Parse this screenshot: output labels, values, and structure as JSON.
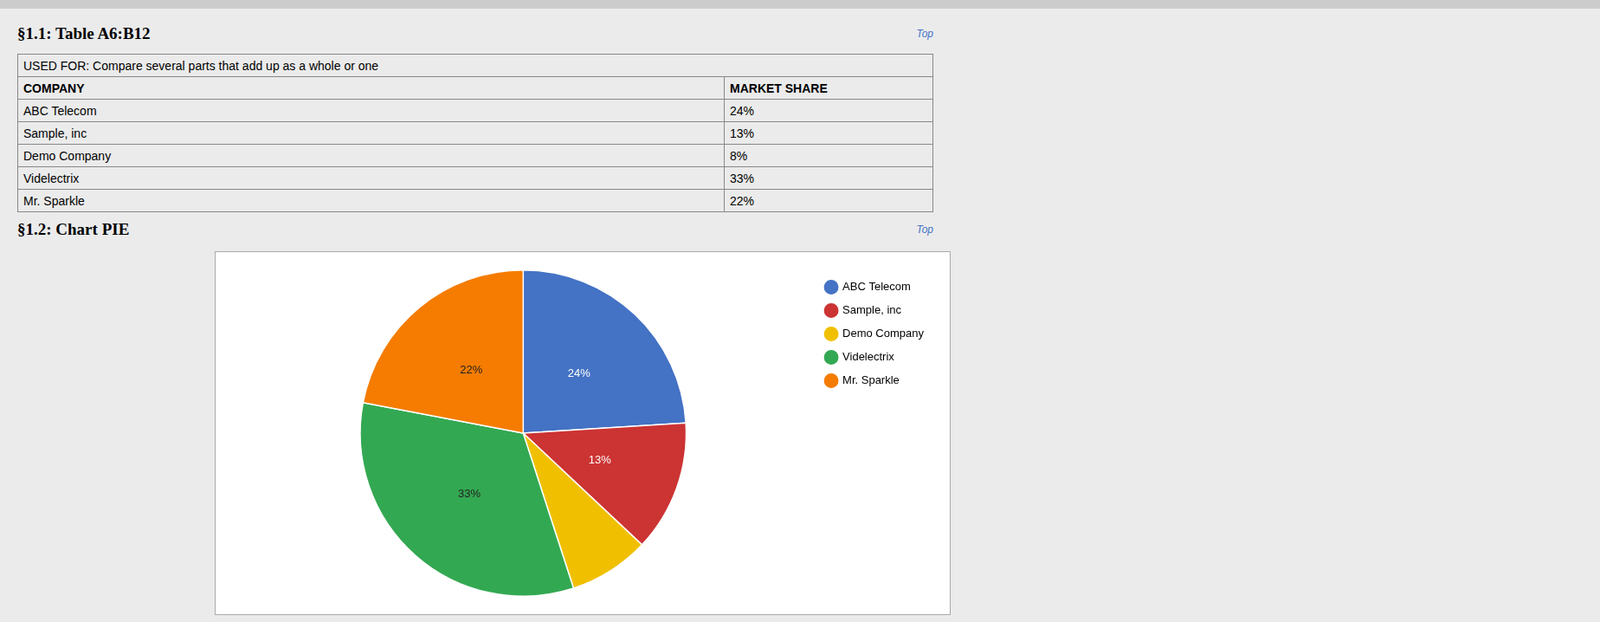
{
  "table": {
    "title": "§1.1: Table A6:B12",
    "link": "Top",
    "caption": "USED FOR: Compare several parts that add up as a whole or one",
    "columns": [
      "COMPANY",
      "MARKET SHARE"
    ],
    "rows": [
      [
        "ABC Telecom",
        "24%"
      ],
      [
        "Sample, inc",
        "13%"
      ],
      [
        "Demo Company",
        "8%"
      ],
      [
        "Videlectrix",
        "33%"
      ],
      [
        "Mr. Sparkle",
        "22%"
      ]
    ]
  },
  "chart_data": {
    "type": "pie",
    "title": "§1.2: Chart PIE",
    "link": "Top",
    "categories": [
      "ABC Telecom",
      "Sample, inc",
      "Demo Company",
      "Videlectrix",
      "Mr. Sparkle"
    ],
    "values": [
      24,
      13,
      8,
      33,
      22
    ],
    "value_labels": [
      "24%",
      "13%",
      null,
      "33%",
      "22%"
    ],
    "colors": [
      "#4472C4",
      "#CC3333",
      "#F0C000",
      "#33A852",
      "#F57C00"
    ],
    "data_labels": true,
    "legend": "right"
  }
}
